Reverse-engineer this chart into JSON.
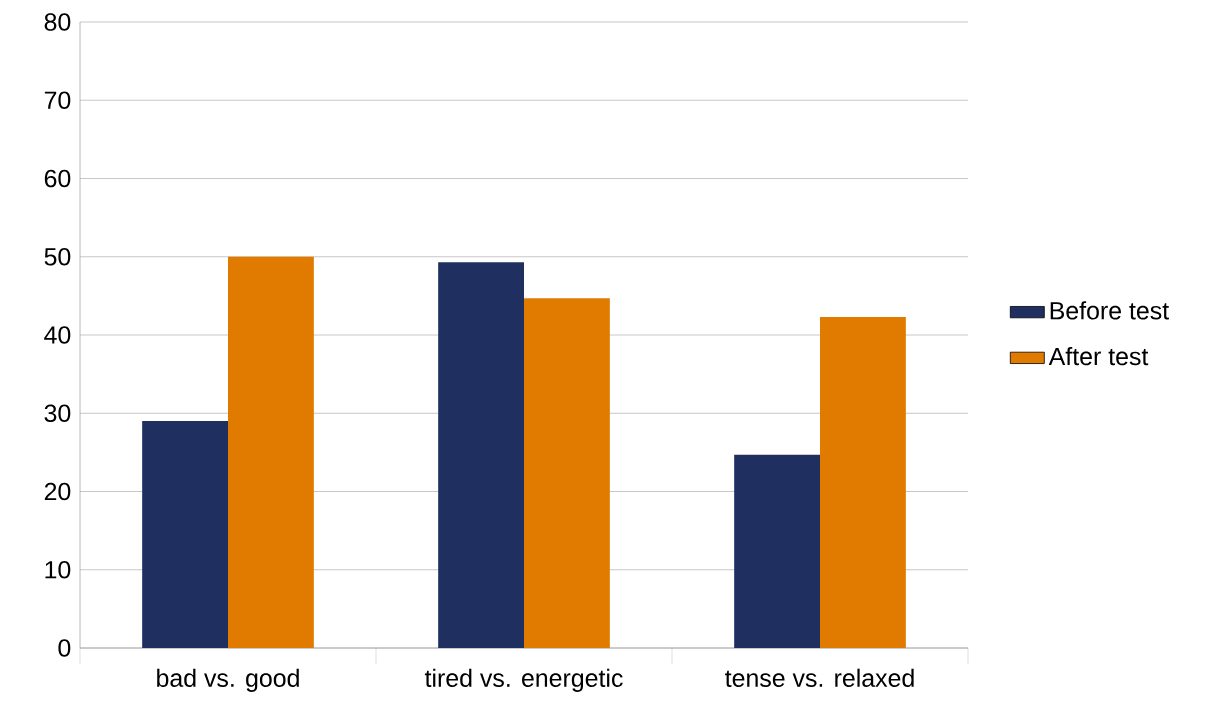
{
  "chart_data": {
    "type": "bar",
    "categories": [
      "bad vs. good",
      "tired vs. energetic",
      "tense vs. relaxed"
    ],
    "series": [
      {
        "name": "Before test",
        "color": "#1f3060",
        "values": [
          29,
          49.3,
          24.7
        ]
      },
      {
        "name": "After test",
        "color": "#e07b00",
        "values": [
          50,
          44.7,
          42.3
        ]
      }
    ],
    "ylim": [
      0,
      80
    ],
    "yticks": [
      0,
      10,
      20,
      30,
      40,
      50,
      60,
      70,
      80
    ],
    "grid": "y",
    "legend": "right"
  }
}
